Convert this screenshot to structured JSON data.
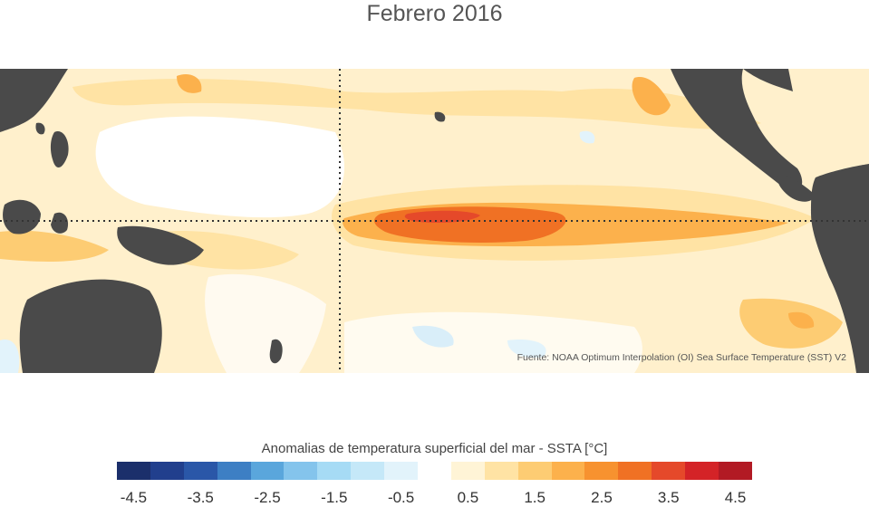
{
  "title": "Febrero 2016",
  "source_note": "Fuente: NOAA Optimum Interpolation (OI) Sea Surface Temperature (SST) V2",
  "colorbar": {
    "title": "Anomalias de temperatura superficial del mar - SSTA  [°C]",
    "bins": [
      {
        "color": "#1b2f6b"
      },
      {
        "color": "#213f8d"
      },
      {
        "color": "#2a57a8"
      },
      {
        "color": "#3d7fc4"
      },
      {
        "color": "#5aa6dc"
      },
      {
        "color": "#84c4ec"
      },
      {
        "color": "#a6dbf5"
      },
      {
        "color": "#c5e8f8"
      },
      {
        "color": "#e2f3fb"
      },
      {
        "color": "#ffffff"
      },
      {
        "color": "#fff4d6"
      },
      {
        "color": "#ffe3a4"
      },
      {
        "color": "#fdcc73"
      },
      {
        "color": "#fcb14c"
      },
      {
        "color": "#f7922f"
      },
      {
        "color": "#f07124"
      },
      {
        "color": "#e5492a"
      },
      {
        "color": "#d42327"
      },
      {
        "color": "#b21a24"
      }
    ],
    "ticks": [
      "-4.5",
      "-3.5",
      "-2.5",
      "-1.5",
      "-0.5",
      "0.5",
      "1.5",
      "2.5",
      "3.5",
      "4.5"
    ]
  },
  "map": {
    "land_color": "#4a4a4a",
    "reference_lines": [
      "equator",
      "date_line"
    ]
  }
}
